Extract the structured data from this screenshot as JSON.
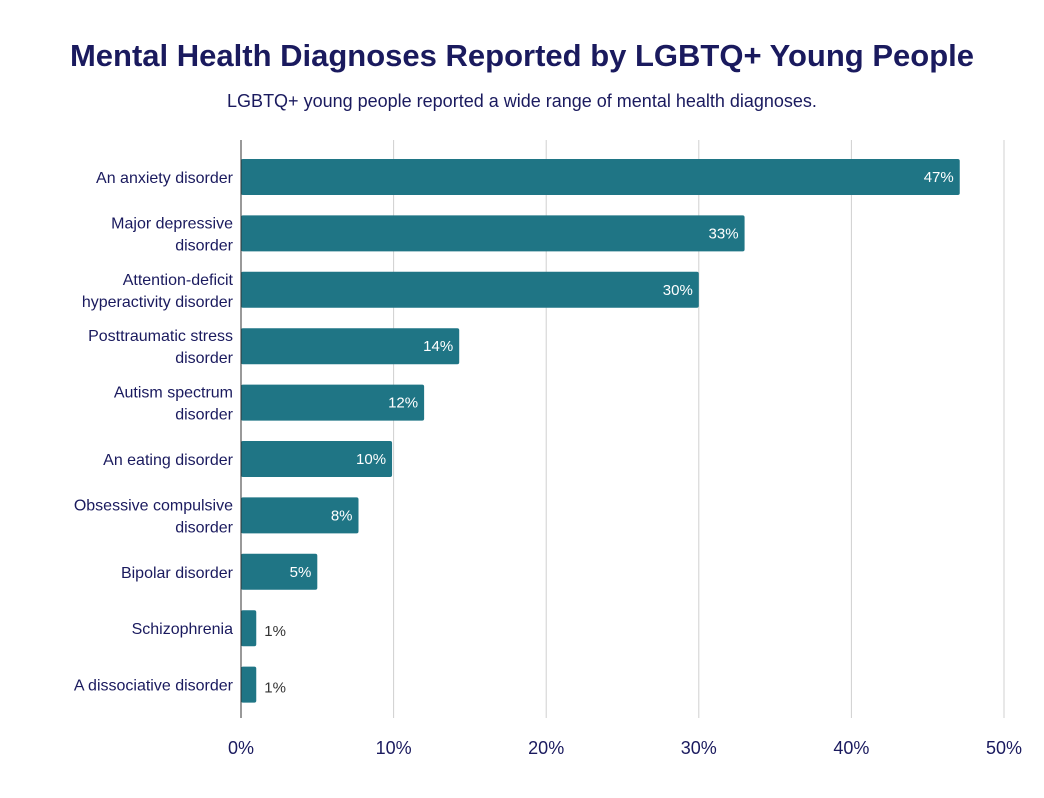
{
  "chart_data": {
    "type": "bar",
    "orientation": "horizontal",
    "title": "Mental Health Diagnoses Reported by LGBTQ+ Young People",
    "subtitle": "LGBTQ+ young people reported a wide range of mental health diagnoses.",
    "categories": [
      [
        "An anxiety disorder"
      ],
      [
        "Major depressive",
        "disorder"
      ],
      [
        "Attention-deficit",
        "hyperactivity disorder"
      ],
      [
        "Posttraumatic stress",
        "disorder"
      ],
      [
        "Autism spectrum",
        "disorder"
      ],
      [
        "An eating disorder"
      ],
      [
        "Obsessive compulsive",
        "disorder"
      ],
      [
        "Bipolar disorder"
      ],
      [
        "Schizophrenia"
      ],
      [
        "A dissociative disorder"
      ]
    ],
    "values": [
      47.1,
      33,
      30,
      14.3,
      12,
      9.9,
      7.7,
      5,
      1,
      1
    ],
    "value_labels": [
      "47%",
      "33%",
      "30%",
      "14%",
      "12%",
      "10%",
      "8%",
      "5%",
      "1%",
      "1%"
    ],
    "xlim": [
      0,
      50
    ],
    "xticks": [
      0,
      10,
      20,
      30,
      40,
      50
    ],
    "xtick_labels": [
      "0%",
      "10%",
      "20%",
      "30%",
      "40%",
      "50%"
    ],
    "xlabel": "",
    "ylabel": "",
    "grid": true,
    "colors": {
      "bar": "#1f7585",
      "title": "#1a1a5e",
      "label_inside": "#ffffff",
      "label_outside": "#333333",
      "grid": "#d0d0d0",
      "axis": "#333333"
    }
  }
}
